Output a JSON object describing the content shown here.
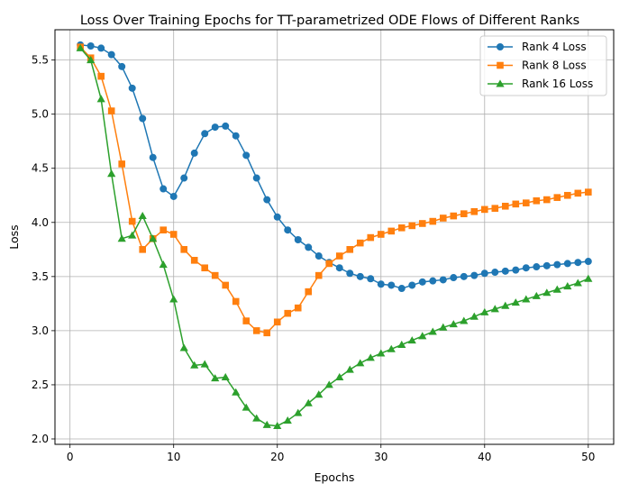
{
  "chart_data": {
    "type": "line",
    "title": "Loss Over Training Epochs for TT-parametrized ODE Flows of Different Ranks",
    "xlabel": "Epochs",
    "ylabel": "Loss",
    "xlim": [
      -1.45,
      52.45
    ],
    "ylim": [
      1.95,
      5.78
    ],
    "xticks": [
      0,
      10,
      20,
      30,
      40,
      50
    ],
    "xtick_labels": [
      "0",
      "10",
      "20",
      "30",
      "40",
      "50"
    ],
    "yticks": [
      2.0,
      2.5,
      3.0,
      3.5,
      4.0,
      4.5,
      5.0,
      5.5
    ],
    "ytick_labels": [
      "2.0",
      "2.5",
      "3.0",
      "3.5",
      "4.0",
      "4.5",
      "5.0",
      "5.5"
    ],
    "grid": true,
    "legend_position": "top-right",
    "x": [
      1,
      2,
      3,
      4,
      5,
      6,
      7,
      8,
      9,
      10,
      11,
      12,
      13,
      14,
      15,
      16,
      17,
      18,
      19,
      20,
      21,
      22,
      23,
      24,
      25,
      26,
      27,
      28,
      29,
      30,
      31,
      32,
      33,
      34,
      35,
      36,
      37,
      38,
      39,
      40,
      41,
      42,
      43,
      44,
      45,
      46,
      47,
      48,
      49,
      50
    ],
    "series": [
      {
        "name": "Rank 4 Loss",
        "color": "#1f77b4",
        "marker": "circle",
        "values": [
          5.64,
          5.63,
          5.61,
          5.55,
          5.44,
          5.24,
          4.96,
          4.6,
          4.31,
          4.24,
          4.41,
          4.64,
          4.82,
          4.88,
          4.89,
          4.8,
          4.62,
          4.41,
          4.21,
          4.05,
          3.93,
          3.84,
          3.77,
          3.69,
          3.63,
          3.58,
          3.53,
          3.5,
          3.48,
          3.43,
          3.42,
          3.39,
          3.42,
          3.45,
          3.46,
          3.47,
          3.49,
          3.5,
          3.51,
          3.53,
          3.54,
          3.55,
          3.56,
          3.58,
          3.59,
          3.6,
          3.61,
          3.62,
          3.63,
          3.64
        ]
      },
      {
        "name": "Rank 8 Loss",
        "color": "#ff7f0e",
        "marker": "square",
        "values": [
          5.62,
          5.52,
          5.35,
          5.03,
          4.54,
          4.01,
          3.75,
          3.85,
          3.93,
          3.89,
          3.75,
          3.65,
          3.58,
          3.51,
          3.42,
          3.27,
          3.09,
          3.0,
          2.98,
          3.08,
          3.16,
          3.21,
          3.36,
          3.51,
          3.62,
          3.69,
          3.75,
          3.81,
          3.86,
          3.89,
          3.92,
          3.95,
          3.97,
          3.99,
          4.01,
          4.04,
          4.06,
          4.08,
          4.1,
          4.12,
          4.13,
          4.15,
          4.17,
          4.18,
          4.2,
          4.21,
          4.23,
          4.25,
          4.27,
          4.28
        ]
      },
      {
        "name": "Rank 16 Loss",
        "color": "#2ca02c",
        "marker": "triangle",
        "values": [
          5.61,
          5.5,
          5.14,
          4.45,
          3.85,
          3.88,
          4.06,
          3.85,
          3.61,
          3.29,
          2.84,
          2.68,
          2.69,
          2.56,
          2.57,
          2.43,
          2.29,
          2.19,
          2.13,
          2.12,
          2.17,
          2.24,
          2.33,
          2.41,
          2.5,
          2.57,
          2.64,
          2.7,
          2.75,
          2.79,
          2.83,
          2.87,
          2.91,
          2.95,
          2.99,
          3.03,
          3.06,
          3.09,
          3.13,
          3.17,
          3.2,
          3.23,
          3.26,
          3.29,
          3.32,
          3.35,
          3.38,
          3.41,
          3.44,
          3.48
        ]
      }
    ]
  }
}
